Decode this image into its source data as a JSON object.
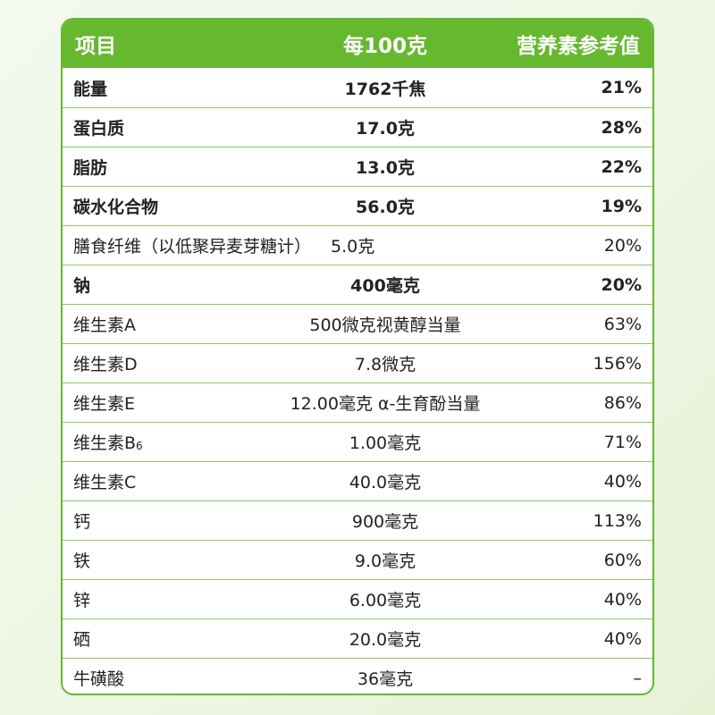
{
  "table": {
    "headers": {
      "item": "项目",
      "per100g": "每100克",
      "nrv": "营养素参考值"
    },
    "rows": [
      {
        "item": "能量",
        "per100g": "1762千焦",
        "nrv": "21%",
        "bold": true
      },
      {
        "item": "蛋白质",
        "per100g": "17.0克",
        "nrv": "28%",
        "bold": true
      },
      {
        "item": "脂肪",
        "per100g": "13.0克",
        "nrv": "22%",
        "bold": true
      },
      {
        "item": "碳水化合物",
        "per100g": "56.0克",
        "nrv": "19%",
        "bold": true
      },
      {
        "item": "膳食纤维（以低聚异麦芽糖计）",
        "per100g": "5.0克",
        "nrv": "20%",
        "bold": false,
        "wide": true
      },
      {
        "item": "钠",
        "per100g": "400毫克",
        "nrv": "20%",
        "bold": true
      },
      {
        "item": "维生素A",
        "per100g": "500微克视黄醇当量",
        "nrv": "63%",
        "bold": false
      },
      {
        "item": "维生素D",
        "per100g": "7.8微克",
        "nrv": "156%",
        "bold": false
      },
      {
        "item": "维生素E",
        "per100g": "12.00毫克 α-生育酚当量",
        "nrv": "86%",
        "bold": false
      },
      {
        "item": "维生素B",
        "item_sub": "6",
        "per100g": "1.00毫克",
        "nrv": "71%",
        "bold": false
      },
      {
        "item": "维生素C",
        "per100g": "40.0毫克",
        "nrv": "40%",
        "bold": false
      },
      {
        "item": "钙",
        "per100g": "900毫克",
        "nrv": "113%",
        "bold": false
      },
      {
        "item": "铁",
        "per100g": "9.0毫克",
        "nrv": "60%",
        "bold": false
      },
      {
        "item": "锌",
        "per100g": "6.00毫克",
        "nrv": "40%",
        "bold": false
      },
      {
        "item": "硒",
        "per100g": "20.0毫克",
        "nrv": "40%",
        "bold": false
      },
      {
        "item": "牛磺酸",
        "per100g": "36毫克",
        "nrv": "–",
        "bold": false
      }
    ]
  },
  "colors": {
    "accent": "#66b82f",
    "border": "#8cc95a",
    "text": "#222222"
  }
}
